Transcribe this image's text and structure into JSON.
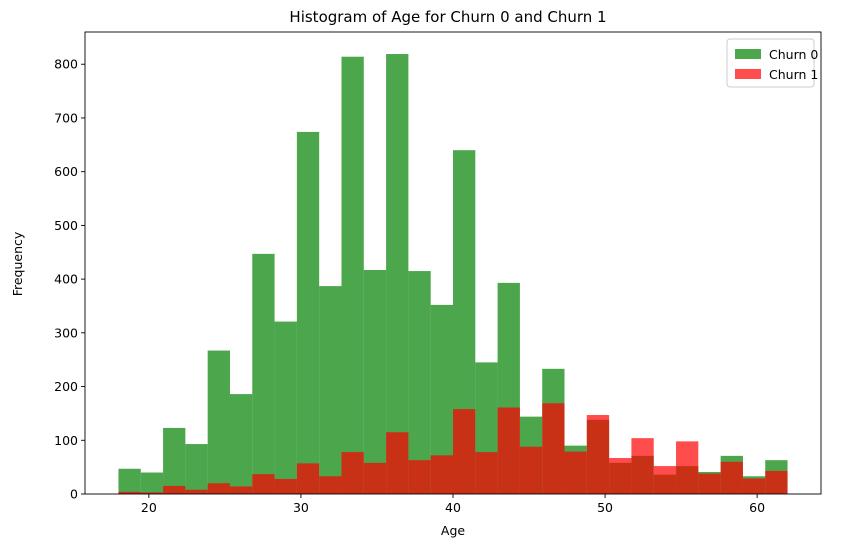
{
  "chart_data": {
    "type": "bar",
    "title": "Histogram of Age for Churn 0 and Churn 1",
    "xlabel": "Age",
    "ylabel": "Frequency",
    "xlim": [
      15.8,
      64.2
    ],
    "ylim": [
      0,
      860
    ],
    "xticks": [
      20,
      30,
      40,
      50,
      60
    ],
    "yticks": [
      0,
      100,
      200,
      300,
      400,
      500,
      600,
      700,
      800
    ],
    "bin_edges": [
      18.0,
      19.4667,
      20.9333,
      22.4,
      23.8667,
      25.3333,
      26.8,
      28.2667,
      29.7333,
      31.2,
      32.6667,
      34.1333,
      35.6,
      37.0667,
      38.5333,
      40.0,
      41.4667,
      42.9333,
      44.4,
      45.8667,
      47.3333,
      48.8,
      50.2667,
      51.7333,
      53.2,
      54.6667,
      56.1333,
      57.6,
      59.0667,
      60.5333,
      62.0
    ],
    "legend_position": "top-right",
    "grid": false,
    "series": [
      {
        "name": "Churn 0",
        "color": "#008000",
        "alpha": 0.7,
        "values": [
          47,
          40,
          123,
          93,
          267,
          186,
          447,
          321,
          674,
          387,
          814,
          417,
          819,
          415,
          352,
          640,
          245,
          393,
          144,
          233,
          90,
          138,
          58,
          71,
          36,
          52,
          41,
          71,
          33,
          63
        ]
      },
      {
        "name": "Churn 1",
        "color": "#ff0000",
        "alpha": 0.7,
        "values": [
          4,
          3,
          15,
          8,
          20,
          14,
          37,
          28,
          57,
          33,
          78,
          58,
          115,
          63,
          72,
          158,
          78,
          161,
          88,
          169,
          79,
          147,
          67,
          104,
          52,
          98,
          38,
          60,
          29,
          43
        ]
      }
    ]
  }
}
